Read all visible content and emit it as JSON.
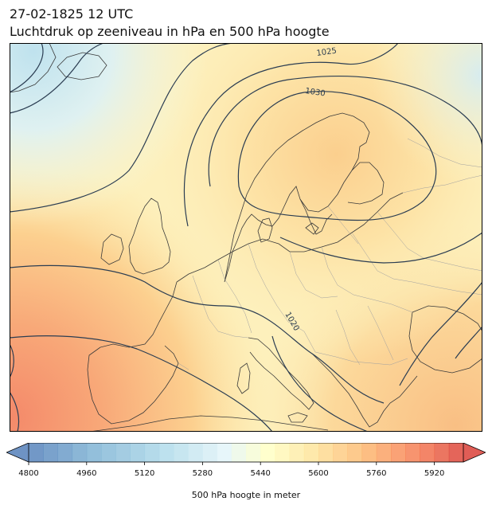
{
  "header": {
    "datetime": "27-02-1825 12 UTC",
    "title": "Luchtdruk op zeeniveau in hPa en 500 hPa hoogte"
  },
  "colors": {
    "isobar": "#2b3d52",
    "coastline": "#3a3a3a",
    "border": "#9a9a9a"
  },
  "isobar_labels": [
    "1025",
    "1030",
    "1020"
  ],
  "colorbar": {
    "label": "500 hPa hoogte in meter",
    "ticks": [
      "4800",
      "4960",
      "5120",
      "5280",
      "5440",
      "5600",
      "5760",
      "5920"
    ],
    "min": 4800,
    "max": 6000,
    "step": 40,
    "extend": "both",
    "colormap": "RdYlBu_r"
  }
}
